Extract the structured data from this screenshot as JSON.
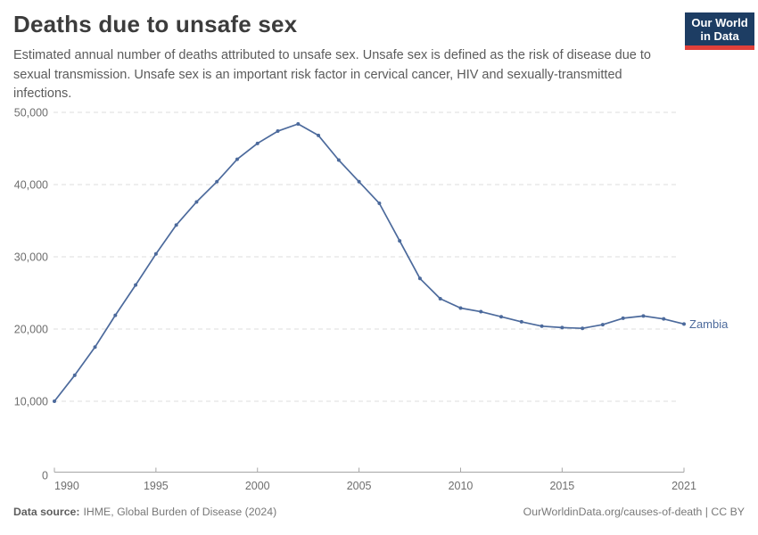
{
  "header": {
    "logo": {
      "line1": "Our World",
      "line2": "in Data"
    }
  },
  "chart_data": {
    "type": "line",
    "title": "Deaths due to unsafe sex",
    "subtitle": "Estimated annual number of deaths attributed to unsafe sex. Unsafe sex is defined as the risk of disease due to sexual transmission. Unsafe sex is an important risk factor in cervical cancer, HIV and sexually-transmitted infections.",
    "x": [
      1990,
      1991,
      1992,
      1993,
      1994,
      1995,
      1996,
      1997,
      1998,
      1999,
      2000,
      2001,
      2002,
      2003,
      2004,
      2005,
      2006,
      2007,
      2008,
      2009,
      2010,
      2011,
      2012,
      2013,
      2014,
      2015,
      2016,
      2017,
      2018,
      2019,
      2020,
      2021
    ],
    "series": [
      {
        "name": "Zambia",
        "color": "#4C6A9C",
        "values": [
          10000,
          13600,
          17500,
          21900,
          26100,
          30400,
          34400,
          37600,
          40400,
          43500,
          45700,
          47400,
          48400,
          46800,
          43400,
          40400,
          37400,
          32200,
          27000,
          24200,
          22900,
          22400,
          21700,
          21000,
          20400,
          20200,
          20100,
          20600,
          21500,
          21800,
          21400,
          20700
        ]
      }
    ],
    "end_label": "Zambia",
    "xlim": [
      1990,
      2021
    ],
    "ylim": [
      0,
      50000
    ],
    "x_ticks": [
      1990,
      1995,
      2000,
      2005,
      2010,
      2015,
      2021
    ],
    "x_tick_labels": [
      "1990",
      "1995",
      "2000",
      "2005",
      "2010",
      "2015",
      "2021"
    ],
    "y_ticks": [
      0,
      10000,
      20000,
      30000,
      40000,
      50000
    ],
    "y_tick_labels": [
      "0",
      "10,000",
      "20,000",
      "30,000",
      "40,000",
      "50,000"
    ],
    "grid": "horizontal-dashed",
    "legend_position": "end-of-line"
  },
  "footer": {
    "source_label": "Data source:",
    "source_value": "IHME, Global Burden of Disease (2024)",
    "credit": "OurWorldinData.org/causes-of-death | CC BY"
  },
  "colors": {
    "line": "#4C6A9C",
    "grid": "#dcdcdc",
    "axis": "#a6a6a6",
    "tick_label": "#6e6e6e",
    "logo_bg": "#1d3d63",
    "logo_accent": "#e0403a"
  }
}
